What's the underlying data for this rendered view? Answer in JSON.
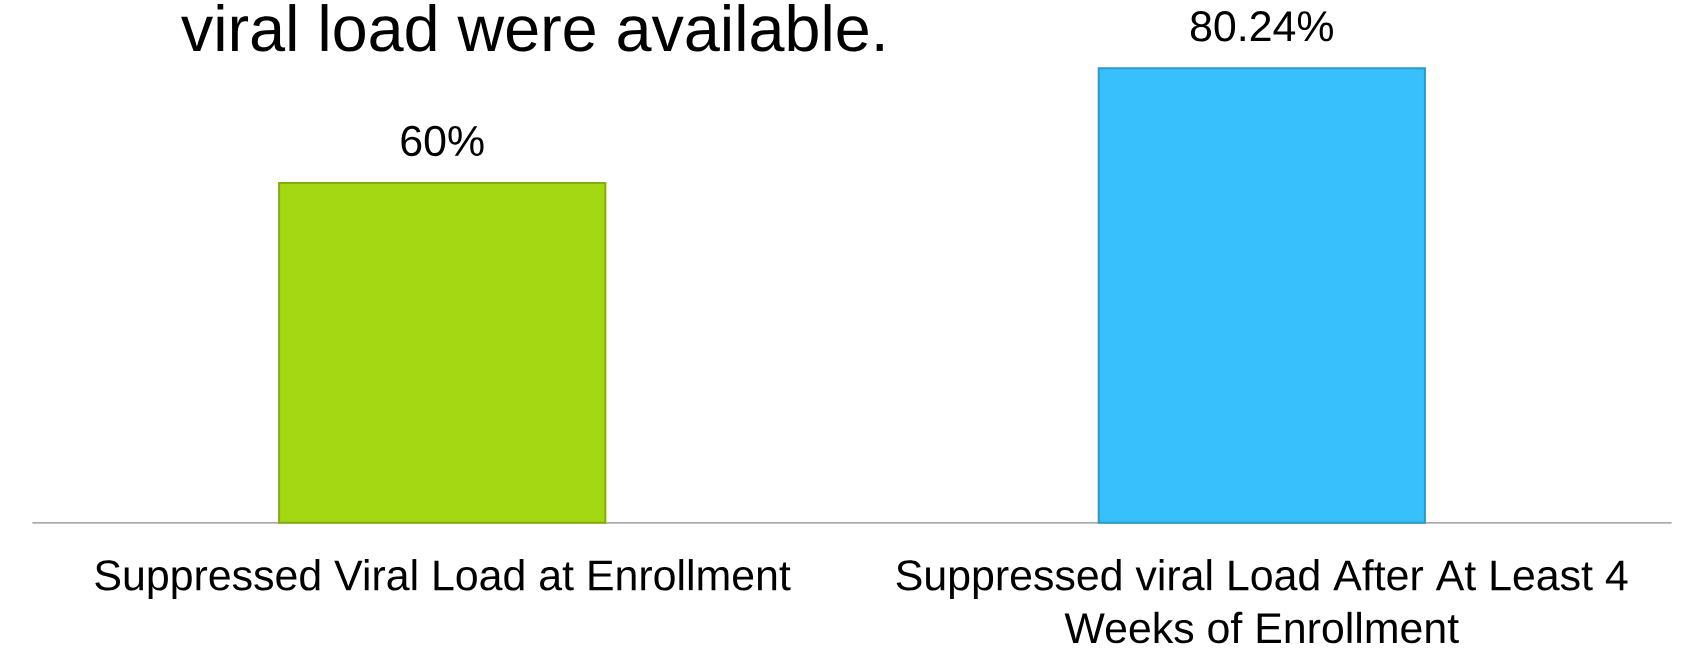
{
  "chart_data": {
    "type": "bar",
    "title": "viral load were available.",
    "categories": [
      "Suppressed Viral Load at Enrollment",
      "Suppressed viral Load After At Least 4 Weeks of Enrollment"
    ],
    "values": [
      60,
      80.24
    ],
    "value_labels": [
      "60%",
      "80.24%"
    ],
    "colors": [
      "#a4d812",
      "#38c0fc"
    ]
  }
}
